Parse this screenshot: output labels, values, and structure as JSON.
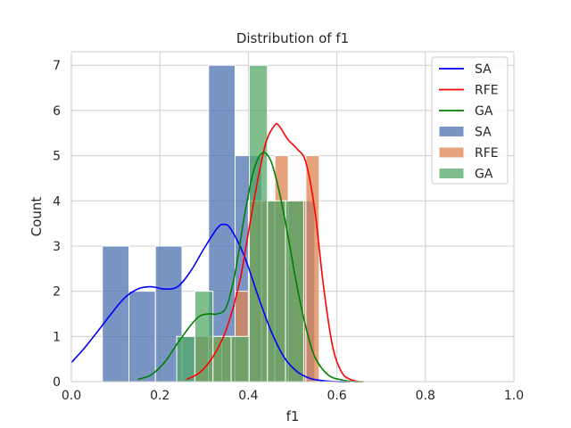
{
  "chart_data": {
    "type": "histogram",
    "title": "Distribution of f1",
    "xlabel": "f1",
    "ylabel": "Count",
    "xlim": [
      0.0,
      1.0
    ],
    "ylim": [
      0,
      7.3
    ],
    "xticks": [
      "0.0",
      "0.2",
      "0.4",
      "0.6",
      "0.8",
      "1.0"
    ],
    "xtick_values": [
      0.0,
      0.2,
      0.4,
      0.6,
      0.8,
      1.0
    ],
    "yticks": [
      "0",
      "1",
      "2",
      "3",
      "4",
      "5",
      "6",
      "7"
    ],
    "ytick_values": [
      0,
      1,
      2,
      3,
      4,
      5,
      6,
      7
    ],
    "grid": true,
    "legend_position": "top-right",
    "series": [
      {
        "name": "SA",
        "color": "#4c72b0",
        "line_color": "#0000ff",
        "bins": [
          {
            "x0": 0.07,
            "x1": 0.13,
            "count": 3
          },
          {
            "x0": 0.13,
            "x1": 0.19,
            "count": 2
          },
          {
            "x0": 0.19,
            "x1": 0.25,
            "count": 3
          },
          {
            "x0": 0.25,
            "x1": 0.31,
            "count": 1
          },
          {
            "x0": 0.31,
            "x1": 0.37,
            "count": 7
          },
          {
            "x0": 0.37,
            "x1": 0.43,
            "count": 5
          },
          {
            "x0": 0.43,
            "x1": 0.49,
            "count": 4
          },
          {
            "x0": 0.49,
            "x1": 0.55,
            "count": 4
          }
        ],
        "kde": {
          "x": [
            0.0,
            0.03,
            0.06,
            0.09,
            0.12,
            0.15,
            0.18,
            0.21,
            0.24,
            0.27,
            0.3,
            0.33,
            0.345,
            0.36,
            0.39,
            0.42,
            0.45,
            0.48,
            0.51,
            0.54,
            0.57,
            0.6,
            0.63
          ],
          "y": [
            0.42,
            0.75,
            1.12,
            1.5,
            1.85,
            2.05,
            2.1,
            2.05,
            2.1,
            2.45,
            2.95,
            3.4,
            3.48,
            3.38,
            2.8,
            1.95,
            1.15,
            0.55,
            0.22,
            0.07,
            0.02,
            0.0,
            0.0
          ]
        }
      },
      {
        "name": "RFE",
        "color": "#dd8452",
        "line_color": "#ff0000",
        "bins": [
          {
            "x0": 0.28,
            "x1": 0.31,
            "count": 1
          },
          {
            "x0": 0.31,
            "x1": 0.34,
            "count": 1
          },
          {
            "x0": 0.34,
            "x1": 0.37,
            "count": 1
          },
          {
            "x0": 0.37,
            "x1": 0.4,
            "count": 2
          },
          {
            "x0": 0.4,
            "x1": 0.43,
            "count": 4
          },
          {
            "x0": 0.43,
            "x1": 0.46,
            "count": 4
          },
          {
            "x0": 0.46,
            "x1": 0.49,
            "count": 5
          },
          {
            "x0": 0.49,
            "x1": 0.53,
            "count": 4
          },
          {
            "x0": 0.53,
            "x1": 0.56,
            "count": 5
          }
        ],
        "kde": {
          "x": [
            0.26,
            0.29,
            0.32,
            0.35,
            0.38,
            0.4,
            0.42,
            0.44,
            0.46,
            0.47,
            0.49,
            0.51,
            0.53,
            0.55,
            0.57,
            0.59,
            0.61,
            0.63,
            0.65
          ],
          "y": [
            0.05,
            0.2,
            0.55,
            1.15,
            2.2,
            3.3,
            4.4,
            5.3,
            5.68,
            5.65,
            5.35,
            5.15,
            4.85,
            3.8,
            2.1,
            0.8,
            0.22,
            0.05,
            0.0
          ]
        }
      },
      {
        "name": "GA",
        "color": "#55a868",
        "line_color": "#008000",
        "bins": [
          {
            "x0": 0.238,
            "x1": 0.279,
            "count": 1
          },
          {
            "x0": 0.279,
            "x1": 0.32,
            "count": 2
          },
          {
            "x0": 0.32,
            "x1": 0.361,
            "count": 1
          },
          {
            "x0": 0.361,
            "x1": 0.402,
            "count": 1
          },
          {
            "x0": 0.402,
            "x1": 0.443,
            "count": 7
          },
          {
            "x0": 0.443,
            "x1": 0.484,
            "count": 4
          },
          {
            "x0": 0.484,
            "x1": 0.525,
            "count": 4
          }
        ],
        "kde": {
          "x": [
            0.15,
            0.18,
            0.21,
            0.24,
            0.27,
            0.29,
            0.31,
            0.33,
            0.35,
            0.37,
            0.39,
            0.41,
            0.43,
            0.45,
            0.47,
            0.49,
            0.51,
            0.53,
            0.55,
            0.58,
            0.61,
            0.64,
            0.66
          ],
          "y": [
            0.05,
            0.15,
            0.42,
            0.85,
            1.25,
            1.45,
            1.5,
            1.5,
            1.65,
            2.4,
            3.6,
            4.6,
            5.05,
            4.9,
            4.2,
            3.2,
            2.1,
            1.2,
            0.55,
            0.15,
            0.04,
            0.0,
            0.0
          ]
        }
      }
    ],
    "legend": [
      {
        "label": "SA",
        "kind": "line",
        "color": "#0000ff"
      },
      {
        "label": "RFE",
        "kind": "line",
        "color": "#ff0000"
      },
      {
        "label": "GA",
        "kind": "line",
        "color": "#008000"
      },
      {
        "label": "SA",
        "kind": "patch",
        "color": "#4c72b0"
      },
      {
        "label": "RFE",
        "kind": "patch",
        "color": "#dd8452"
      },
      {
        "label": "GA",
        "kind": "patch",
        "color": "#55a868"
      }
    ]
  }
}
